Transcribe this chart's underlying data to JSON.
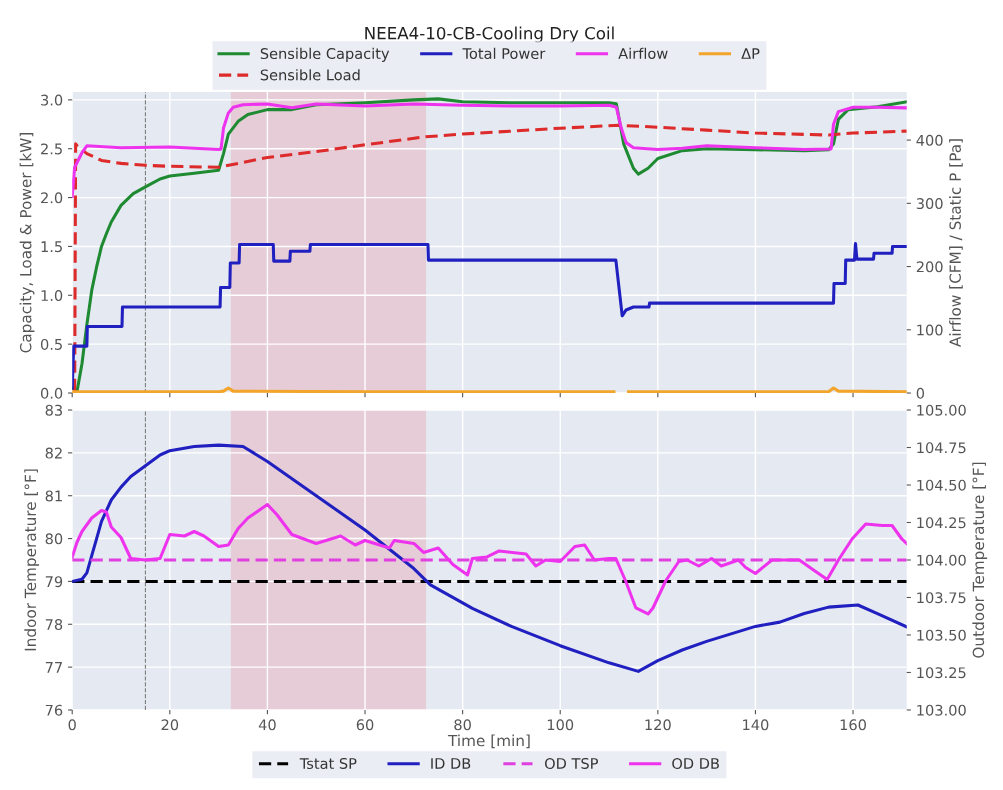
{
  "chart_data": [
    {
      "type": "line",
      "title": "NEEA4-10-CB-Cooling Dry Coil",
      "ylabel": "Capacity, Load & Power [kW]",
      "y2label": "Airflow [CFM] / Static P [Pa]",
      "xlim": [
        0,
        171
      ],
      "xticks": [
        0,
        20,
        40,
        60,
        80,
        100,
        120,
        140,
        160
      ],
      "ylim": [
        0,
        3.08
      ],
      "yticks": [
        {
          "value": 0,
          "label": "0.0"
        },
        {
          "value": 0.5,
          "label": "0.5"
        },
        {
          "value": 1,
          "label": "1.0"
        },
        {
          "value": 1.5,
          "label": "1.5"
        },
        {
          "value": 2,
          "label": "2.0"
        },
        {
          "value": 2.5,
          "label": "2.5"
        },
        {
          "value": 3,
          "label": "3.0"
        }
      ],
      "y2lim": [
        0,
        476
      ],
      "y2ticks": [
        0,
        100,
        200,
        300,
        400
      ],
      "grid": true,
      "legend": "top",
      "tick_labels": "y",
      "bands": [
        {
          "axis": "x",
          "from": 32.5,
          "to": 72.5,
          "color": "#e6ccd6"
        }
      ],
      "ref_lines": [
        {
          "axis": "x",
          "value": 15,
          "color": "#808080",
          "line_style": "dashed"
        }
      ],
      "series": [
        {
          "name": "Sensible Capacity",
          "color": "#1e8a32",
          "line_style": "solid",
          "x": [
            0,
            1,
            2,
            3,
            4,
            5,
            6,
            7,
            8,
            10,
            12.5,
            15,
            18,
            20,
            25,
            30,
            31,
            32,
            34,
            36,
            40,
            45,
            50,
            60,
            70,
            75,
            80,
            90,
            100,
            110,
            111.5,
            113,
            115,
            116,
            118,
            120,
            125,
            130,
            140,
            150,
            155,
            156,
            157,
            159,
            165,
            171
          ],
          "values": [
            0.05,
            0.02,
            0.3,
            0.7,
            1.05,
            1.29,
            1.5,
            1.63,
            1.75,
            1.92,
            2.04,
            2.11,
            2.19,
            2.22,
            2.25,
            2.28,
            2.45,
            2.65,
            2.78,
            2.85,
            2.9,
            2.9,
            2.95,
            2.97,
            3.0,
            3.01,
            2.98,
            2.97,
            2.97,
            2.97,
            2.96,
            2.55,
            2.3,
            2.24,
            2.3,
            2.4,
            2.48,
            2.5,
            2.49,
            2.48,
            2.49,
            2.55,
            2.8,
            2.9,
            2.93,
            2.98
          ]
        },
        {
          "name": "Sensible Load",
          "color": "#dd2a2a",
          "line_style": "dashed",
          "x": [
            0.5,
            0.7,
            1,
            3,
            6,
            10,
            15,
            20,
            30,
            40,
            50,
            60,
            72,
            80,
            90,
            100,
            112,
            120,
            130,
            140,
            155,
            160,
            171
          ],
          "values": [
            0.02,
            2.55,
            2.53,
            2.45,
            2.38,
            2.35,
            2.33,
            2.32,
            2.31,
            2.41,
            2.47,
            2.54,
            2.62,
            2.65,
            2.68,
            2.71,
            2.74,
            2.72,
            2.69,
            2.66,
            2.64,
            2.66,
            2.68
          ]
        },
        {
          "name": "Total Power",
          "color": "#2020c0",
          "line_style": "solid",
          "x": [
            0,
            0.3,
            3,
            3.1,
            10.2,
            10.3,
            30.3,
            30.4,
            32.3,
            32.4,
            34.2,
            34.3,
            41.2,
            41.3,
            44.6,
            44.7,
            48.7,
            48.8,
            72.9,
            73,
            111.4,
            112.7,
            113.5,
            115,
            118.2,
            118.3,
            156,
            156.1,
            158.4,
            158.5,
            160.3,
            160.5,
            160.8,
            164.2,
            164.3,
            168,
            168.1,
            171
          ],
          "values": [
            0.05,
            0.48,
            0.48,
            0.68,
            0.68,
            0.88,
            0.88,
            1.08,
            1.08,
            1.33,
            1.33,
            1.52,
            1.52,
            1.35,
            1.35,
            1.45,
            1.45,
            1.52,
            1.52,
            1.36,
            1.36,
            0.79,
            0.85,
            0.88,
            0.88,
            0.92,
            0.92,
            1.12,
            1.12,
            1.36,
            1.36,
            1.53,
            1.37,
            1.37,
            1.43,
            1.43,
            1.5,
            1.5
          ]
        },
        {
          "name": "Airflow",
          "color": "#ee33ee",
          "line_style": "solid",
          "axis": "y2",
          "x": [
            0,
            0.5,
            2,
            3,
            10,
            20,
            30,
            30.5,
            31,
            32,
            33,
            35,
            40,
            45,
            50,
            60,
            70,
            80,
            90,
            100,
            110,
            111.5,
            112.5,
            113.5,
            115,
            120,
            125,
            130,
            140,
            150,
            155.5,
            156,
            157,
            160,
            165,
            171
          ],
          "values": [
            311,
            357,
            380,
            391,
            388,
            389,
            385,
            386,
            419,
            443,
            452,
            456,
            457,
            451,
            457,
            454,
            457,
            455,
            454,
            454,
            455,
            452,
            419,
            396,
            388,
            385,
            387,
            391,
            388,
            385,
            386,
            425,
            445,
            452,
            452,
            451
          ]
        },
        {
          "name": "ΔP",
          "color": "#f2a52a",
          "line_style": "solid",
          "axis": "y2",
          "x": [
            0,
            30,
            31,
            32,
            33,
            60,
            111,
            112,
            114,
            155,
            156,
            157,
            171
          ],
          "values": [
            2,
            2,
            3,
            8,
            3,
            2,
            2,
            null,
            2,
            2,
            8,
            3,
            2
          ]
        }
      ]
    },
    {
      "type": "line",
      "xlabel": "Time [min]",
      "ylabel": "Indoor Temperature [°F]",
      "y2label": "Outdoor Temperature [°F]",
      "xlim": [
        0,
        171
      ],
      "xticks": [
        0,
        20,
        40,
        60,
        80,
        100,
        120,
        140,
        160
      ],
      "ylim": [
        76,
        83
      ],
      "yticks": [
        76,
        77,
        78,
        79,
        80,
        81,
        82,
        83
      ],
      "y2lim": [
        103,
        105
      ],
      "y2ticks": [
        {
          "value": 103,
          "label": "103.00"
        },
        {
          "value": 103.25,
          "label": "103.25"
        },
        {
          "value": 103.5,
          "label": "103.50"
        },
        {
          "value": 103.75,
          "label": "103.75"
        },
        {
          "value": 104,
          "label": "104.00"
        },
        {
          "value": 104.25,
          "label": "104.25"
        },
        {
          "value": 104.5,
          "label": "104.50"
        },
        {
          "value": 104.75,
          "label": "104.75"
        },
        {
          "value": 105,
          "label": "105.00"
        }
      ],
      "grid": true,
      "legend": "bottom",
      "bands": [
        {
          "axis": "x",
          "from": 32.5,
          "to": 72.5,
          "color": "#e6ccd6"
        }
      ],
      "ref_lines": [
        {
          "axis": "x",
          "value": 15,
          "color": "#808080",
          "line_style": "dashed"
        }
      ],
      "series": [
        {
          "name": "Tstat SP",
          "color": "#000000",
          "line_style": "dashed",
          "x": [
            0,
            171
          ],
          "values": [
            79,
            79
          ]
        },
        {
          "name": "ID DB",
          "color": "#2020c0",
          "line_style": "solid",
          "x": [
            0,
            2,
            3,
            4,
            5,
            6,
            8,
            10,
            12,
            15,
            18,
            20,
            25,
            30,
            35,
            40,
            50,
            60,
            70,
            73.4,
            80,
            82,
            90,
            100,
            110,
            116,
            120,
            125,
            130,
            140,
            145,
            150,
            155,
            161,
            165,
            171
          ],
          "values": [
            79.0,
            79.05,
            79.2,
            79.6,
            80.0,
            80.4,
            80.9,
            81.2,
            81.45,
            81.7,
            81.95,
            82.05,
            82.15,
            82.18,
            82.15,
            81.8,
            81.0,
            80.2,
            79.3,
            78.92,
            78.5,
            78.37,
            77.95,
            77.5,
            77.1,
            76.9,
            77.15,
            77.4,
            77.6,
            77.95,
            78.05,
            78.25,
            78.4,
            78.45,
            78.25,
            77.94
          ]
        },
        {
          "name": "OD TSP",
          "color": "#e040e0",
          "line_style": "dashed",
          "axis": "y2",
          "x": [
            0,
            171
          ],
          "values": [
            104,
            104
          ]
        },
        {
          "name": "OD DB",
          "color": "#ee33ee",
          "line_style": "solid",
          "axis": "y2",
          "x": [
            0,
            1,
            2,
            4,
            6,
            7,
            8,
            10,
            11,
            12,
            15,
            18,
            20,
            23,
            25,
            27,
            30,
            32,
            34,
            36,
            40,
            42,
            45,
            50,
            55,
            58,
            60,
            65,
            66,
            70,
            72,
            75,
            78,
            81,
            82,
            85,
            87.5,
            93,
            95,
            97,
            100,
            103,
            105,
            107,
            110,
            111.4,
            113.4,
            115.5,
            118,
            119,
            121.6,
            124.3,
            126,
            128.4,
            131,
            133,
            136.5,
            138,
            140,
            143.4,
            149,
            151.6,
            154.7,
            157,
            159.8,
            162.6,
            166,
            168,
            170,
            171
          ],
          "values": [
            104.02,
            104.12,
            104.19,
            104.28,
            104.33,
            104.32,
            104.22,
            104.15,
            104.08,
            104.01,
            104.0,
            104.01,
            104.17,
            104.16,
            104.19,
            104.16,
            104.09,
            104.1,
            104.21,
            104.28,
            104.37,
            104.3,
            104.17,
            104.11,
            104.16,
            104.1,
            104.13,
            104.08,
            104.13,
            104.11,
            104.05,
            104.08,
            103.97,
            103.9,
            104.01,
            104.02,
            104.06,
            104.04,
            103.96,
            104.0,
            103.99,
            104.09,
            104.1,
            104.0,
            104.01,
            104.01,
            103.86,
            103.68,
            103.64,
            103.68,
            103.86,
            103.99,
            104.0,
            103.96,
            104.01,
            103.96,
            104.0,
            103.95,
            103.91,
            104.0,
            104.0,
            103.94,
            103.87,
            104.0,
            104.14,
            104.24,
            104.23,
            104.23,
            104.14,
            104.11
          ]
        }
      ]
    }
  ]
}
